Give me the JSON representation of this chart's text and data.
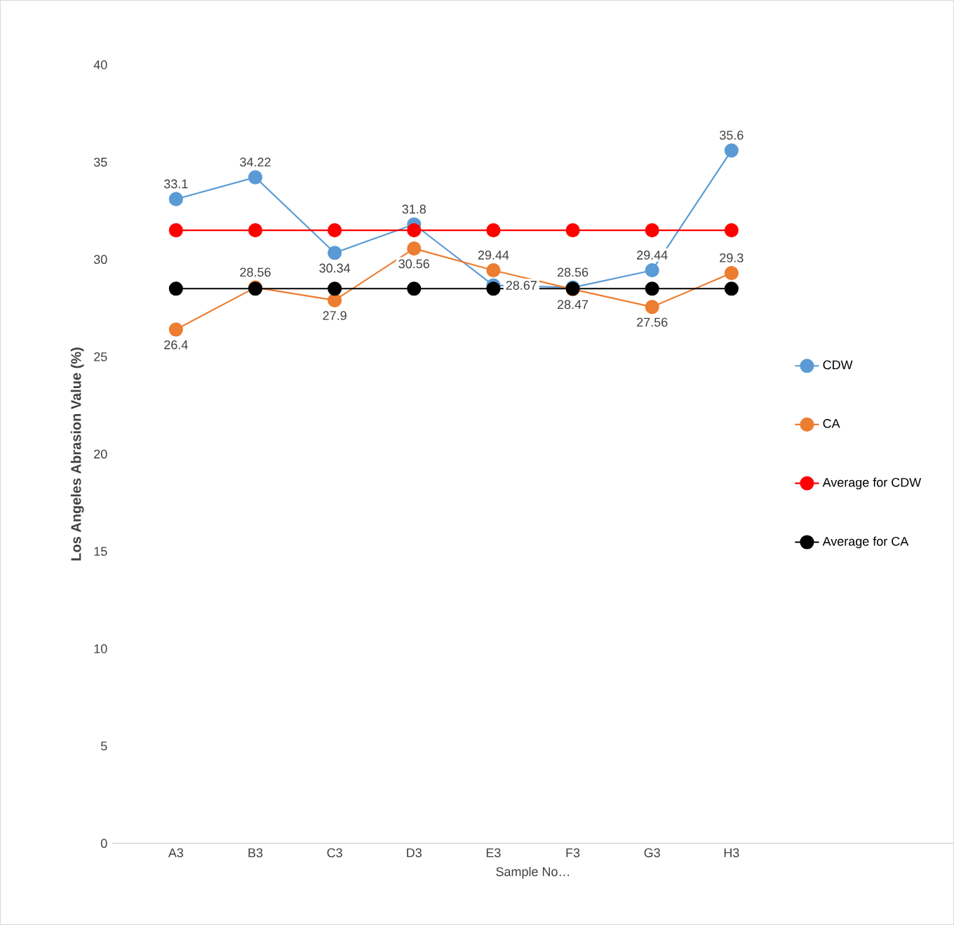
{
  "chart_data": {
    "type": "line",
    "ylabel": "Los Angeles Abrasion Value (%)",
    "xlabel": "Sample No…",
    "categories": [
      "A3",
      "B3",
      "C3",
      "D3",
      "E3",
      "F3",
      "G3",
      "H3"
    ],
    "series": [
      {
        "name": "CDW",
        "color": "#5b9bd5",
        "values": [
          33.1,
          34.22,
          30.34,
          31.8,
          28.67,
          28.56,
          29.44,
          35.6
        ],
        "value_labels": [
          "33.1",
          "34.22",
          "30.34",
          "31.8",
          "28.67",
          "28.56",
          "29.44",
          "35.6"
        ]
      },
      {
        "name": "CA",
        "color": "#ed7d31",
        "values": [
          26.4,
          28.56,
          27.9,
          30.56,
          29.44,
          28.47,
          27.56,
          29.3
        ],
        "value_labels": [
          "26.4",
          "28.56",
          "27.9",
          "30.56",
          "29.44",
          "28.47",
          "27.56",
          "29.3"
        ]
      },
      {
        "name": "Average for CDW",
        "color": "#ff0000",
        "values": [
          31.5,
          31.5,
          31.5,
          31.5,
          31.5,
          31.5,
          31.5,
          31.5
        ]
      },
      {
        "name": "Average for CA",
        "color": "#000000",
        "values": [
          28.5,
          28.5,
          28.5,
          28.5,
          28.5,
          28.5,
          28.5,
          28.5
        ]
      }
    ],
    "ylim": [
      0,
      40
    ],
    "yticks": [
      0,
      5,
      10,
      15,
      20,
      25,
      30,
      35,
      40
    ],
    "grid": false,
    "legend": "right",
    "marker": "circle",
    "line_style": "solid"
  }
}
